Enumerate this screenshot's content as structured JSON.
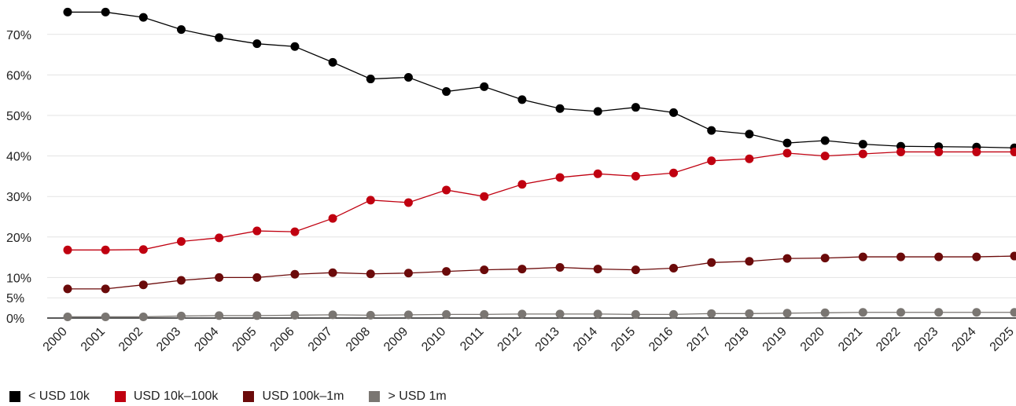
{
  "chart_data": {
    "type": "line",
    "x": [
      "2000",
      "2001",
      "2002",
      "2003",
      "2004",
      "2005",
      "2006",
      "2007",
      "2008",
      "2009",
      "2010",
      "2011",
      "2012",
      "2013",
      "2014",
      "2015",
      "2016",
      "2017",
      "2018",
      "2019",
      "2020",
      "2021",
      "2022",
      "2023",
      "2024",
      "2025"
    ],
    "ylim": [
      0,
      75
    ],
    "yticks": [
      0,
      5,
      10,
      20,
      30,
      40,
      50,
      60,
      70
    ],
    "ytick_labels": [
      "0%",
      "5%",
      "10%",
      "20%",
      "30%",
      "40%",
      "50%",
      "60%",
      "70%"
    ],
    "grid": true,
    "legend_position": "bottom-left",
    "series": [
      {
        "name": "< USD 10k",
        "color": "#000000",
        "values": [
          75.5,
          75.5,
          74.2,
          71.2,
          69.2,
          67.7,
          67.0,
          63.1,
          59.0,
          59.4,
          55.9,
          57.1,
          53.9,
          51.7,
          51.0,
          52.0,
          50.7,
          46.3,
          45.4,
          43.2,
          43.8,
          42.9,
          42.4,
          42.3,
          42.2,
          42.0
        ]
      },
      {
        "name": "USD 10k–100k",
        "color": "#c00010",
        "values": [
          16.8,
          16.8,
          16.9,
          18.9,
          19.8,
          21.5,
          21.3,
          24.6,
          29.1,
          28.5,
          31.6,
          30.0,
          33.0,
          34.7,
          35.6,
          35.0,
          35.8,
          38.8,
          39.3,
          40.7,
          40.0,
          40.5,
          41.0,
          41.0,
          41.0,
          41.0
        ]
      },
      {
        "name": "USD 100k–1m",
        "color": "#6b0a0a",
        "values": [
          7.2,
          7.2,
          8.2,
          9.3,
          10.0,
          10.0,
          10.8,
          11.2,
          10.9,
          11.1,
          11.5,
          11.9,
          12.1,
          12.5,
          12.1,
          11.9,
          12.3,
          13.7,
          14.0,
          14.7,
          14.8,
          15.1,
          15.1,
          15.1,
          15.1,
          15.3
        ]
      },
      {
        "name": "> USD 1m",
        "color": "#7a7672",
        "values": [
          0.3,
          0.3,
          0.3,
          0.5,
          0.6,
          0.6,
          0.7,
          0.8,
          0.7,
          0.8,
          0.9,
          0.9,
          1.0,
          1.0,
          1.0,
          0.9,
          0.9,
          1.1,
          1.1,
          1.2,
          1.3,
          1.4,
          1.4,
          1.4,
          1.4,
          1.4
        ]
      }
    ]
  }
}
